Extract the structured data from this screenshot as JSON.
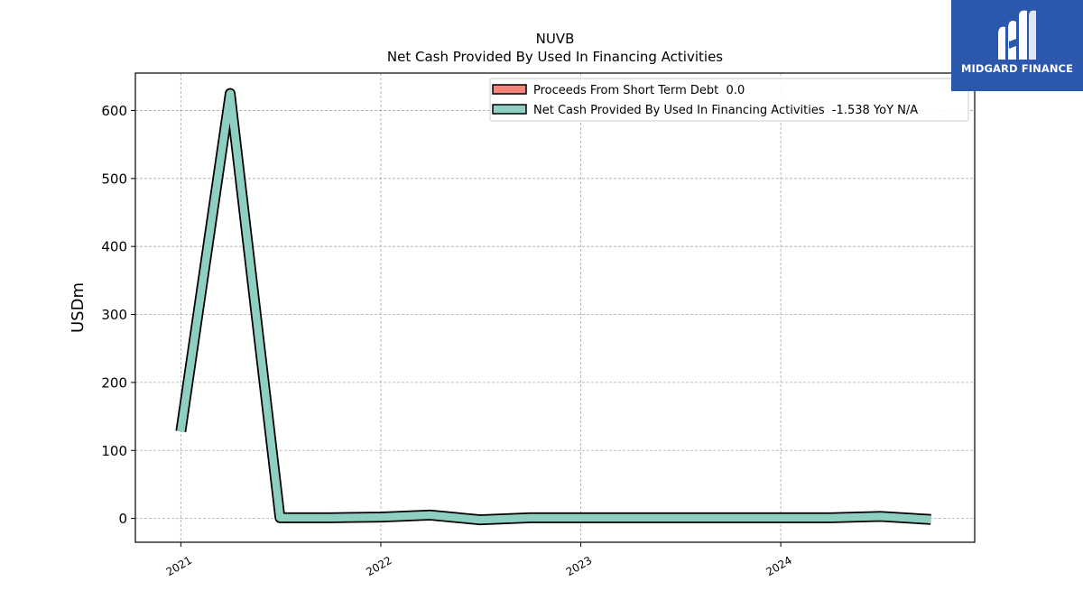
{
  "brand": {
    "name": "MIDGARD FINANCE",
    "color": "#2b57ad",
    "icon": "midgard-logo-icon"
  },
  "chart_data": {
    "type": "line",
    "title": "NUVB",
    "subtitle": "Net Cash Provided By Used In Financing Activities",
    "ylabel": "USDm",
    "xlabel": "",
    "ylim": [
      -35,
      655
    ],
    "xlim": [
      "2020-10-10",
      "2024-12-20"
    ],
    "y_ticks": [
      0,
      100,
      200,
      300,
      400,
      500,
      600
    ],
    "x_ticks": [
      "2021",
      "2022",
      "2023",
      "2024"
    ],
    "x_tick_dates": [
      "2021-01-01",
      "2022-01-01",
      "2023-01-01",
      "2024-01-01"
    ],
    "grid": true,
    "legend_position": "top-right",
    "series": [
      {
        "name": "Proceeds From Short Term Debt",
        "legend_label": "Proceeds From Short Term Debt  0.0",
        "color": "#f4837a",
        "x": [],
        "values": []
      },
      {
        "name": "Net Cash Provided By Used In Financing Activities",
        "legend_label": "Net Cash Provided By Used In Financing Activities  -1.538 YoY N/A",
        "color": "#8ecfc1",
        "x": [
          "2021-01-01",
          "2021-04-01",
          "2021-07-01",
          "2021-10-01",
          "2022-01-01",
          "2022-04-01",
          "2022-07-01",
          "2022-10-01",
          "2023-01-01",
          "2023-04-01",
          "2023-07-01",
          "2023-10-01",
          "2024-01-01",
          "2024-04-01",
          "2024-07-01",
          "2024-10-01"
        ],
        "values": [
          128,
          625,
          1,
          1,
          2,
          5,
          -2,
          1,
          1,
          1,
          1,
          1,
          1,
          1,
          3,
          -1.538
        ]
      }
    ]
  }
}
